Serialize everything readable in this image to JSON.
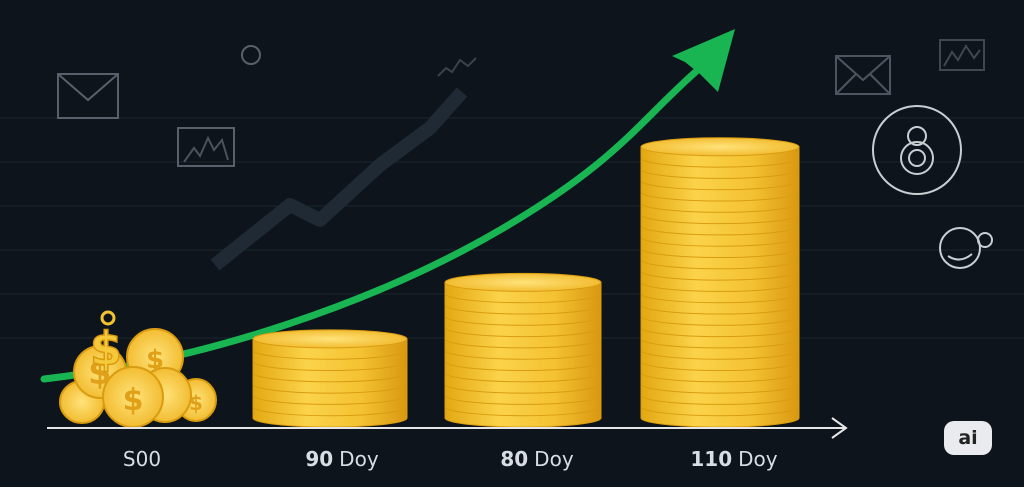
{
  "labels": [
    {
      "num": "S00",
      "unit": ""
    },
    {
      "num": "90",
      "unit": "Doy"
    },
    {
      "num": "80",
      "unit": "Doy"
    },
    {
      "num": "110",
      "unit": "Doy"
    }
  ],
  "badge": "ai",
  "colors": {
    "background": "#0d141c",
    "coin": "#f2c230",
    "coin_edge": "#d99c10",
    "arrow": "#18b552",
    "axis": "#e6e6e6"
  },
  "coin_stacks": [
    {
      "label_index": 1,
      "coins": 7
    },
    {
      "label_index": 2,
      "coins": 12
    },
    {
      "label_index": 3,
      "coins": 24
    }
  ],
  "icons": [
    "envelope-icon",
    "chart-icon",
    "lock-icon",
    "coin-face-icon"
  ]
}
